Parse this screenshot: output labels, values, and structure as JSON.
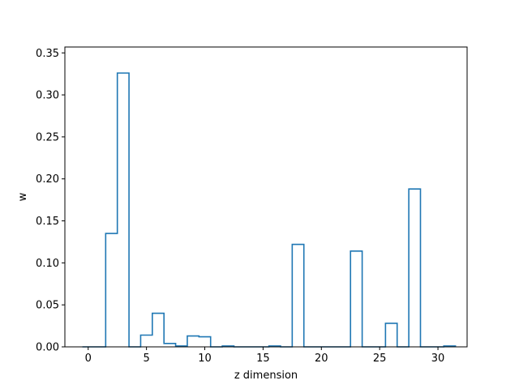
{
  "chart_data": {
    "type": "bar",
    "style": "step-histogram",
    "title": "",
    "xlabel": "z dimension",
    "ylabel": "w",
    "xlim": [
      -2,
      32.5
    ],
    "ylim": [
      0,
      0.357
    ],
    "xticks": [
      0,
      5,
      10,
      15,
      20,
      25,
      30
    ],
    "xtick_labels": [
      "0",
      "5",
      "10",
      "15",
      "20",
      "25",
      "30"
    ],
    "yticks": [
      0.0,
      0.05,
      0.1,
      0.15,
      0.2,
      0.25,
      0.3,
      0.35
    ],
    "ytick_labels": [
      "0.00",
      "0.05",
      "0.10",
      "0.15",
      "0.20",
      "0.25",
      "0.30",
      "0.35"
    ],
    "grid": false,
    "color": "#1f77b4",
    "x": [
      0,
      1,
      2,
      3,
      4,
      5,
      6,
      7,
      8,
      9,
      10,
      11,
      12,
      13,
      14,
      15,
      16,
      17,
      18,
      19,
      20,
      21,
      22,
      23,
      24,
      25,
      26,
      27,
      28,
      29,
      30,
      31
    ],
    "values": [
      0,
      0,
      0.135,
      0.326,
      0,
      0.014,
      0.04,
      0.004,
      0.001,
      0.013,
      0.012,
      0,
      0.001,
      0,
      0,
      0,
      0.001,
      0,
      0.122,
      0,
      0,
      0,
      0,
      0.114,
      0,
      0,
      0.028,
      0,
      0.188,
      0,
      0,
      0.001
    ]
  }
}
